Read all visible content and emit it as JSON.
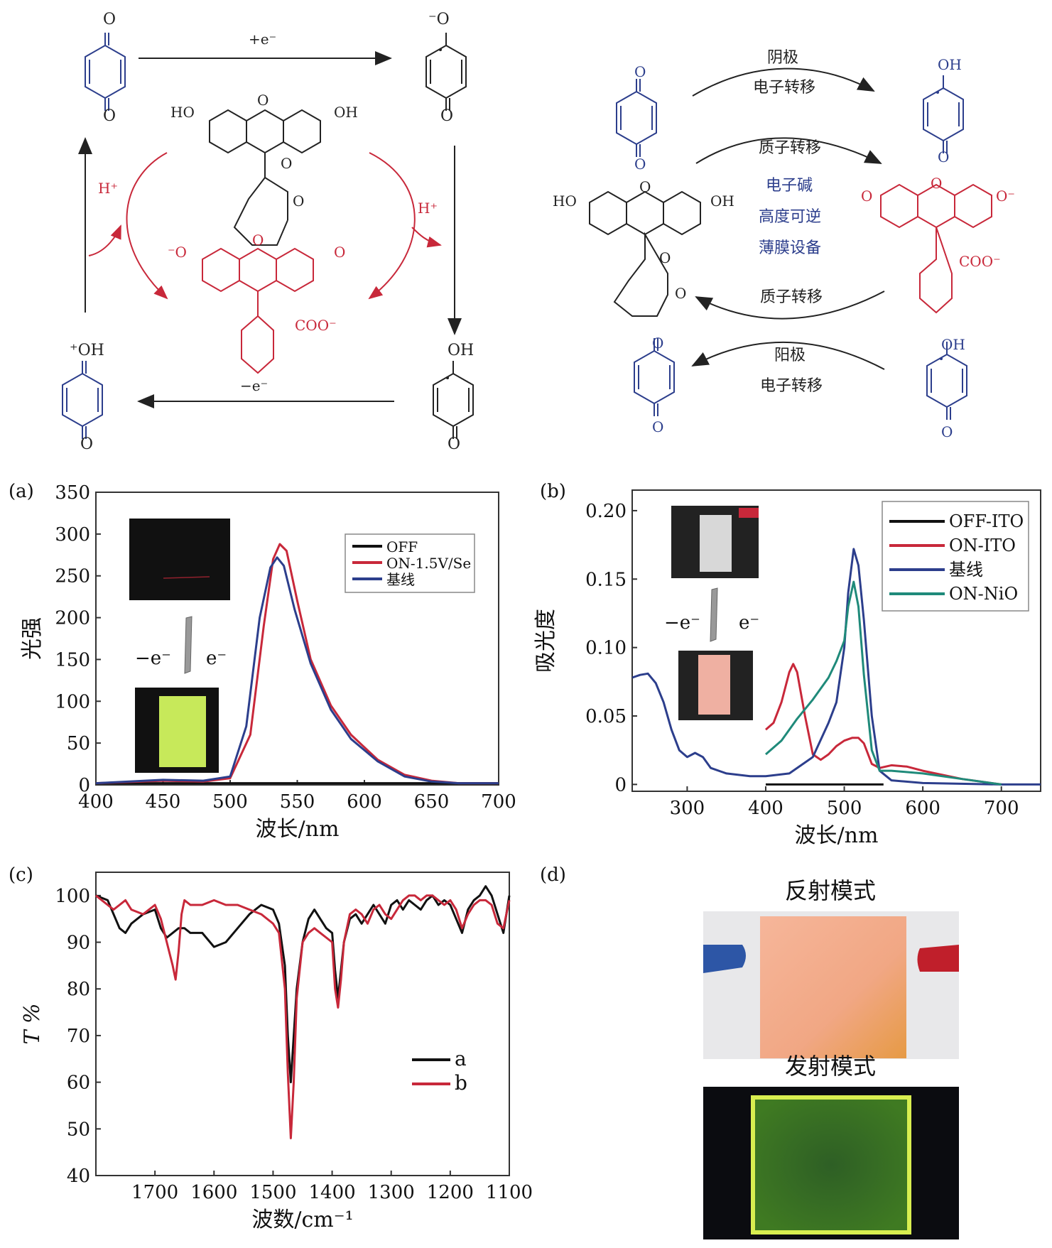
{
  "scheme_left": {
    "top_arrow": "+e⁻",
    "bottom_arrow": "−e⁻",
    "left_h": "H⁺",
    "right_h": "H⁺",
    "labels": {
      "o_top": "O",
      "o_bottom": "O",
      "o_rad": "⁻O",
      "oh": "OH",
      "oh_plus": "⁺OH",
      "ho": "HO",
      "coo": "COO⁻",
      "o_minus": "⁻O",
      "o": "O"
    }
  },
  "scheme_right": {
    "cathode_top": "阴极",
    "et_top": "电子转移",
    "pt_top": "质子转移",
    "center_lines": [
      "电子碱",
      "高度可逆",
      "薄膜设备"
    ],
    "pt_bottom": "质子转移",
    "anode_bottom": "阳极",
    "et_bottom": "电子转移",
    "labels": {
      "oh": "OH",
      "ho": "HO",
      "o": "O",
      "o_minus": "O⁻",
      "coo": "COO⁻"
    }
  },
  "panels": {
    "a": "(a)",
    "b": "(b)",
    "c": "(c)",
    "d": "(d)"
  },
  "chart_data": [
    {
      "type": "line",
      "panel": "(a)",
      "xlabel": "波长/nm",
      "ylabel": "光强",
      "xlim": [
        400,
        700
      ],
      "ylim": [
        0,
        350
      ],
      "xticks": [
        400,
        450,
        500,
        550,
        600,
        650,
        700
      ],
      "yticks": [
        0,
        50,
        100,
        150,
        200,
        250,
        300,
        350
      ],
      "legend_position": "top-right",
      "inset_labels": [
        "−e⁻",
        "e⁻"
      ],
      "series": [
        {
          "name": "OFF",
          "color": "#111111",
          "x": [
            400,
            700
          ],
          "y": [
            2,
            2
          ]
        },
        {
          "name": "ON-1.5V/Se",
          "color": "#c8283a",
          "x": [
            400,
            450,
            480,
            500,
            515,
            525,
            532,
            537,
            542,
            550,
            560,
            575,
            590,
            610,
            630,
            650,
            670,
            700
          ],
          "y": [
            2,
            5,
            4,
            8,
            60,
            190,
            270,
            288,
            280,
            220,
            150,
            95,
            60,
            30,
            12,
            5,
            2,
            2
          ]
        },
        {
          "name": "基线",
          "color": "#2c3e8c",
          "x": [
            400,
            450,
            480,
            500,
            512,
            522,
            530,
            535,
            540,
            548,
            560,
            575,
            590,
            610,
            630,
            650,
            670,
            700
          ],
          "y": [
            2,
            6,
            5,
            10,
            70,
            200,
            260,
            272,
            262,
            210,
            145,
            90,
            55,
            28,
            10,
            4,
            2,
            2
          ]
        }
      ]
    },
    {
      "type": "line",
      "panel": "(b)",
      "xlabel": "波长/nm",
      "ylabel": "吸光度",
      "xlim": [
        230,
        750
      ],
      "ylim": [
        -0.005,
        0.215
      ],
      "xticks": [
        300,
        400,
        500,
        600,
        700
      ],
      "yticks": [
        0,
        0.05,
        0.1,
        0.15,
        0.2
      ],
      "ytick_labels": [
        "0",
        "0.05",
        "0.10",
        "0.15",
        "0.20"
      ],
      "legend_position": "top-right",
      "inset_labels": [
        "−e⁻",
        "e⁻"
      ],
      "series": [
        {
          "name": "OFF-ITO",
          "color": "#111111",
          "x": [
            400,
            550
          ],
          "y": [
            0,
            0
          ]
        },
        {
          "name": "ON-ITO",
          "color": "#c8283a",
          "x": [
            400,
            410,
            420,
            430,
            435,
            440,
            450,
            460,
            470,
            480,
            490,
            500,
            510,
            518,
            525,
            535,
            545,
            560,
            580,
            600,
            650,
            700
          ],
          "y": [
            0.04,
            0.045,
            0.06,
            0.082,
            0.088,
            0.082,
            0.05,
            0.022,
            0.018,
            0.022,
            0.028,
            0.032,
            0.034,
            0.034,
            0.03,
            0.015,
            0.012,
            0.014,
            0.013,
            0.01,
            0.004,
            0.0
          ]
        },
        {
          "name": "基线",
          "color": "#2c3e8c",
          "x": [
            230,
            240,
            250,
            260,
            270,
            280,
            290,
            300,
            310,
            320,
            330,
            350,
            380,
            400,
            430,
            460,
            480,
            490,
            500,
            505,
            512,
            518,
            525,
            535,
            545,
            560,
            600,
            700,
            750
          ],
          "y": [
            0.078,
            0.08,
            0.081,
            0.074,
            0.06,
            0.04,
            0.025,
            0.02,
            0.023,
            0.02,
            0.012,
            0.008,
            0.006,
            0.006,
            0.008,
            0.02,
            0.045,
            0.06,
            0.1,
            0.14,
            0.172,
            0.16,
            0.12,
            0.05,
            0.01,
            0.003,
            0.001,
            0.0,
            0.0
          ]
        },
        {
          "name": "ON-NiO",
          "color": "#1f8a7a",
          "x": [
            400,
            420,
            440,
            460,
            480,
            490,
            500,
            505,
            512,
            518,
            525,
            535,
            545,
            560,
            600,
            650,
            700
          ],
          "y": [
            0.022,
            0.032,
            0.048,
            0.062,
            0.078,
            0.09,
            0.105,
            0.13,
            0.148,
            0.13,
            0.08,
            0.025,
            0.01,
            0.01,
            0.008,
            0.004,
            0.0
          ]
        }
      ]
    },
    {
      "type": "line",
      "panel": "(c)",
      "xlabel": "波数/cm⁻¹",
      "ylabel": "T %",
      "xlim": [
        1800,
        1100
      ],
      "ylim": [
        40,
        105
      ],
      "xticks": [
        1700,
        1600,
        1500,
        1400,
        1300,
        1200,
        1100
      ],
      "yticks": [
        40,
        50,
        60,
        70,
        80,
        90,
        100
      ],
      "legend_position": "bottom-right",
      "series": [
        {
          "name": "a",
          "color": "#111111",
          "x": [
            1800,
            1780,
            1770,
            1760,
            1750,
            1740,
            1720,
            1700,
            1690,
            1680,
            1670,
            1660,
            1650,
            1640,
            1620,
            1600,
            1580,
            1560,
            1540,
            1520,
            1500,
            1490,
            1480,
            1475,
            1470,
            1460,
            1450,
            1440,
            1430,
            1420,
            1410,
            1400,
            1395,
            1390,
            1385,
            1380,
            1370,
            1360,
            1350,
            1340,
            1330,
            1320,
            1310,
            1300,
            1290,
            1280,
            1270,
            1260,
            1250,
            1240,
            1230,
            1220,
            1210,
            1200,
            1190,
            1180,
            1170,
            1160,
            1150,
            1140,
            1130,
            1120,
            1110,
            1100
          ],
          "y": [
            100,
            99,
            96,
            93,
            92,
            94,
            96,
            97,
            93,
            91,
            92,
            93,
            93,
            92,
            92,
            89,
            90,
            93,
            96,
            98,
            97,
            94,
            85,
            70,
            60,
            80,
            90,
            95,
            97,
            95,
            93,
            92,
            84,
            78,
            84,
            90,
            95,
            96,
            94,
            96,
            98,
            96,
            94,
            98,
            99,
            97,
            99,
            98,
            97,
            99,
            100,
            98,
            99,
            98,
            95,
            92,
            97,
            99,
            100,
            102,
            100,
            96,
            92,
            100
          ]
        },
        {
          "name": "b",
          "color": "#c8283a",
          "x": [
            1800,
            1780,
            1770,
            1760,
            1750,
            1740,
            1720,
            1700,
            1690,
            1680,
            1670,
            1665,
            1660,
            1655,
            1650,
            1640,
            1620,
            1600,
            1580,
            1560,
            1540,
            1520,
            1500,
            1490,
            1480,
            1475,
            1470,
            1465,
            1460,
            1450,
            1440,
            1430,
            1420,
            1410,
            1400,
            1395,
            1390,
            1385,
            1380,
            1370,
            1360,
            1350,
            1340,
            1330,
            1320,
            1310,
            1300,
            1290,
            1280,
            1270,
            1260,
            1250,
            1240,
            1230,
            1220,
            1210,
            1200,
            1190,
            1180,
            1170,
            1160,
            1150,
            1140,
            1130,
            1120,
            1110,
            1100
          ],
          "y": [
            100,
            98,
            97,
            98,
            99,
            97,
            96,
            98,
            95,
            90,
            85,
            82,
            88,
            96,
            99,
            98,
            98,
            99,
            98,
            98,
            97,
            96,
            94,
            92,
            80,
            62,
            48,
            60,
            78,
            90,
            92,
            93,
            92,
            91,
            90,
            80,
            76,
            82,
            90,
            96,
            97,
            96,
            94,
            97,
            98,
            96,
            95,
            97,
            99,
            100,
            100,
            99,
            100,
            100,
            99,
            98,
            99,
            97,
            93,
            96,
            98,
            99,
            99,
            98,
            94,
            93,
            99
          ]
        }
      ]
    }
  ],
  "panel_d": {
    "reflect_label": "反射模式",
    "emit_label": "发射模式"
  }
}
